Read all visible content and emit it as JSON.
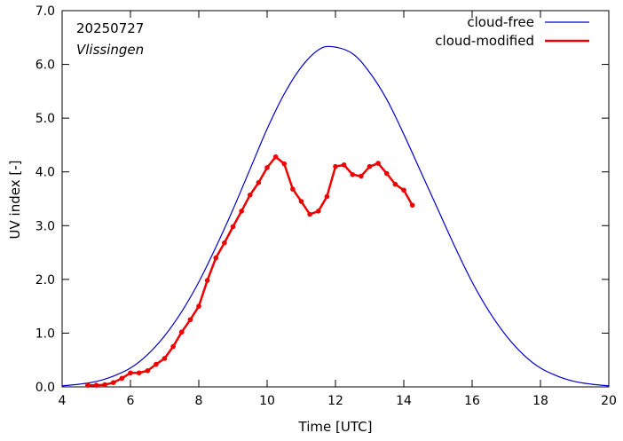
{
  "chart_data": {
    "type": "line",
    "title": "",
    "annotations": {
      "date": "20250727",
      "location": "Vlissingen"
    },
    "xlabel": "Time  [UTC]",
    "ylabel": "UV index  [-]",
    "xlim": [
      4,
      20
    ],
    "ylim": [
      0,
      7
    ],
    "x_ticks": [
      4,
      6,
      8,
      10,
      12,
      14,
      16,
      18,
      20
    ],
    "y_ticks": [
      0,
      1,
      2,
      3,
      4,
      5,
      6,
      7
    ],
    "x_tick_labels": [
      "4",
      "6",
      "8",
      "10",
      "12",
      "14",
      "16",
      "18",
      "20"
    ],
    "y_tick_labels": [
      "0.0",
      "1.0",
      "2.0",
      "3.0",
      "4.0",
      "5.0",
      "6.0",
      "7.0"
    ],
    "grid": false,
    "legend_position": "top-right",
    "series": [
      {
        "name": "cloud-free",
        "color": "#0000cc",
        "markers": false,
        "x": [
          4.0,
          4.5,
          5.0,
          5.5,
          6.0,
          6.5,
          7.0,
          7.5,
          8.0,
          8.5,
          9.0,
          9.5,
          10.0,
          10.5,
          11.0,
          11.5,
          11.9,
          12.5,
          13.0,
          13.5,
          14.0,
          14.5,
          15.0,
          15.5,
          16.0,
          16.5,
          17.0,
          17.5,
          18.0,
          18.5,
          19.0,
          19.5,
          20.0
        ],
        "y": [
          0.02,
          0.05,
          0.1,
          0.2,
          0.35,
          0.6,
          0.95,
          1.4,
          1.95,
          2.6,
          3.3,
          4.05,
          4.8,
          5.45,
          5.95,
          6.27,
          6.33,
          6.2,
          5.85,
          5.35,
          4.7,
          4.0,
          3.3,
          2.6,
          1.95,
          1.4,
          0.95,
          0.6,
          0.35,
          0.2,
          0.1,
          0.05,
          0.02
        ]
      },
      {
        "name": "cloud-modified",
        "color": "#ee0000",
        "markers": true,
        "x": [
          4.75,
          5.0,
          5.25,
          5.5,
          5.75,
          6.0,
          6.25,
          6.5,
          6.75,
          7.0,
          7.25,
          7.5,
          7.75,
          8.0,
          8.25,
          8.5,
          8.75,
          9.0,
          9.25,
          9.5,
          9.75,
          10.0,
          10.25,
          10.5,
          10.75,
          11.0,
          11.25,
          11.5,
          11.75,
          12.0,
          12.25,
          12.5,
          12.75,
          13.0,
          13.25,
          13.5,
          13.75,
          14.0,
          14.25
        ],
        "y": [
          0.03,
          0.03,
          0.04,
          0.08,
          0.16,
          0.26,
          0.26,
          0.3,
          0.42,
          0.53,
          0.75,
          1.02,
          1.25,
          1.5,
          1.98,
          2.4,
          2.68,
          2.98,
          3.27,
          3.57,
          3.8,
          4.08,
          4.28,
          4.15,
          3.68,
          3.45,
          3.21,
          3.27,
          3.54,
          4.1,
          4.13,
          3.95,
          3.92,
          4.1,
          4.16,
          3.97,
          3.77,
          3.66,
          3.38
        ]
      }
    ]
  }
}
